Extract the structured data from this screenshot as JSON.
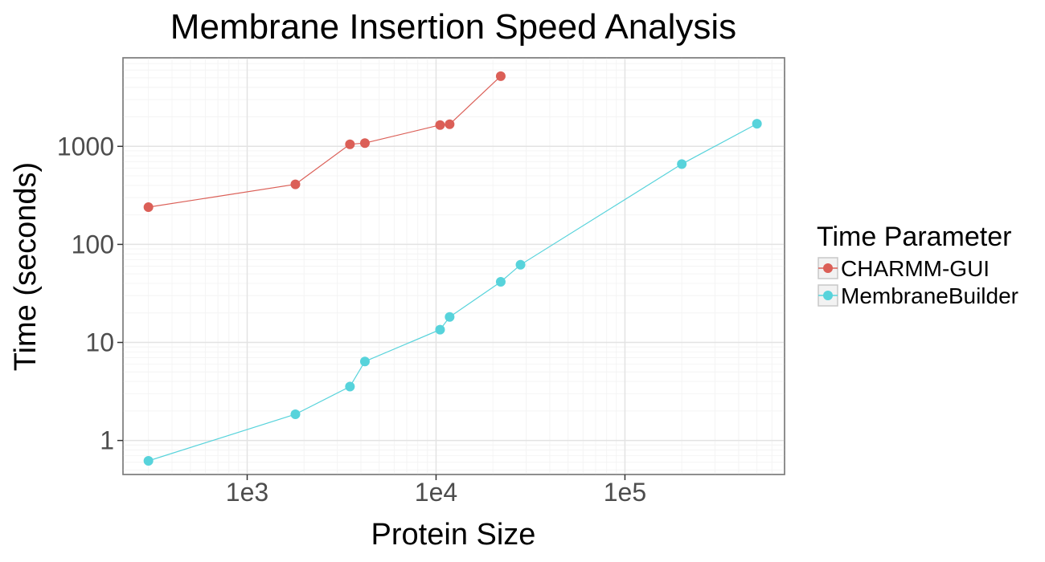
{
  "chart_data": {
    "type": "line",
    "title": "Membrane Insertion Speed Analysis",
    "xlabel": "Protein Size",
    "ylabel": "Time (seconds)",
    "x_scale": "log10",
    "y_scale": "log10",
    "xlim": [
      220,
      700000
    ],
    "ylim": [
      0.45,
      8000
    ],
    "x_ticks": [
      {
        "value": 1000,
        "label": "1e3"
      },
      {
        "value": 10000,
        "label": "1e4"
      },
      {
        "value": 100000,
        "label": "1e5"
      }
    ],
    "y_ticks": [
      {
        "value": 1,
        "label": "1"
      },
      {
        "value": 10,
        "label": "10"
      },
      {
        "value": 100,
        "label": "100"
      },
      {
        "value": 1000,
        "label": "1000"
      }
    ],
    "grid": true,
    "legend": {
      "title": "Time Parameter",
      "position": "right"
    },
    "series": [
      {
        "name": "CHARMM-GUI",
        "color": "#db5f57",
        "x": [
          300,
          1800,
          3500,
          4200,
          10500,
          11800,
          22000
        ],
        "y": [
          240,
          410,
          1050,
          1080,
          1650,
          1680,
          5200
        ]
      },
      {
        "name": "MembraneBuilder",
        "color": "#57d3db",
        "x": [
          300,
          1800,
          3500,
          4200,
          10500,
          11800,
          22000,
          28000,
          200000,
          500000
        ],
        "y": [
          0.62,
          1.85,
          3.55,
          6.4,
          13.5,
          18.2,
          41.5,
          62,
          660,
          1700
        ]
      }
    ]
  }
}
